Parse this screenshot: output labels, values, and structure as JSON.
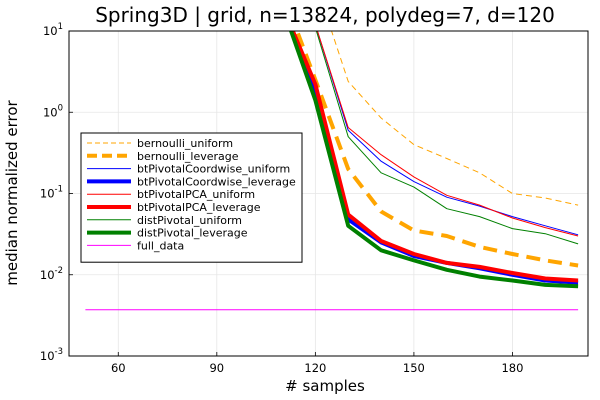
{
  "chart_data": {
    "type": "line",
    "title": "Spring3D | grid, n=13824, polydeg=7, d=120",
    "xlabel": "# samples",
    "ylabel": "median normalized error",
    "xlim": [
      45,
      203
    ],
    "ylim": [
      0.001,
      10
    ],
    "yscale": "log",
    "xticks": [
      60,
      90,
      120,
      150,
      180
    ],
    "yticks": [
      {
        "value": 0.001,
        "label": "10",
        "exp": "-3"
      },
      {
        "value": 0.01,
        "label": "10",
        "exp": "-2"
      },
      {
        "value": 0.1,
        "label": "10",
        "exp": "-1"
      },
      {
        "value": 1,
        "label": "10",
        "exp": "0"
      },
      {
        "value": 10,
        "label": "10",
        "exp": "1"
      }
    ],
    "grid": true,
    "legend_position": "left-middle",
    "series": [
      {
        "name": "bernoulli_uniform",
        "color": "#ffa500",
        "width": 1,
        "dash": "6,4",
        "x": [
          120,
          130,
          140,
          150,
          160,
          170,
          180,
          190,
          200
        ],
        "y": [
          40,
          2.4,
          0.85,
          0.4,
          0.27,
          0.18,
          0.1,
          0.088,
          0.072
        ]
      },
      {
        "name": "bernoulli_leverage",
        "color": "#ffa500",
        "width": 4,
        "dash": "14,8",
        "x": [
          110,
          120,
          130,
          140,
          150,
          160,
          170,
          180,
          190,
          200
        ],
        "y": [
          30,
          2.5,
          0.2,
          0.06,
          0.035,
          0.03,
          0.022,
          0.018,
          0.015,
          0.013
        ]
      },
      {
        "name": "btPivotalCoordwise_uniform",
        "color": "#0000ff",
        "width": 1,
        "dash": "",
        "x": [
          115,
          120,
          130,
          140,
          150,
          160,
          170,
          180,
          190,
          200
        ],
        "y": [
          30,
          12,
          0.6,
          0.25,
          0.14,
          0.09,
          0.07,
          0.052,
          0.04,
          0.031
        ]
      },
      {
        "name": "btPivotalCoordwise_leverage",
        "color": "#0000ff",
        "width": 4,
        "dash": "",
        "x": [
          110,
          120,
          130,
          140,
          150,
          160,
          170,
          180,
          190,
          200
        ],
        "y": [
          20,
          1.8,
          0.048,
          0.025,
          0.017,
          0.014,
          0.012,
          0.01,
          0.0085,
          0.008
        ]
      },
      {
        "name": "btPivotalPCA_uniform",
        "color": "#ff0000",
        "width": 1,
        "dash": "",
        "x": [
          115,
          120,
          130,
          140,
          150,
          160,
          170,
          180,
          190,
          200
        ],
        "y": [
          30,
          12,
          0.65,
          0.3,
          0.16,
          0.095,
          0.072,
          0.05,
          0.038,
          0.03
        ]
      },
      {
        "name": "btPivotalPCA_leverage",
        "color": "#ff0000",
        "width": 4,
        "dash": "",
        "x": [
          110,
          120,
          130,
          140,
          150,
          160,
          170,
          180,
          190,
          200
        ],
        "y": [
          20,
          2.2,
          0.055,
          0.026,
          0.018,
          0.014,
          0.0125,
          0.0105,
          0.009,
          0.0085
        ]
      },
      {
        "name": "distPivotal_uniform",
        "color": "#008000",
        "width": 1,
        "dash": "",
        "x": [
          115,
          120,
          130,
          140,
          150,
          160,
          170,
          180,
          190,
          200
        ],
        "y": [
          30,
          11,
          0.5,
          0.18,
          0.12,
          0.065,
          0.052,
          0.037,
          0.032,
          0.024
        ]
      },
      {
        "name": "distPivotal_leverage",
        "color": "#008000",
        "width": 4,
        "dash": "",
        "x": [
          110,
          120,
          130,
          140,
          150,
          160,
          170,
          180,
          190,
          200
        ],
        "y": [
          20,
          1.4,
          0.04,
          0.02,
          0.015,
          0.0115,
          0.0095,
          0.0085,
          0.0075,
          0.0072
        ]
      },
      {
        "name": "full_data",
        "color": "#ff00ff",
        "width": 1,
        "dash": "",
        "x": [
          50,
          200
        ],
        "y": [
          0.0037,
          0.0037
        ]
      }
    ]
  }
}
